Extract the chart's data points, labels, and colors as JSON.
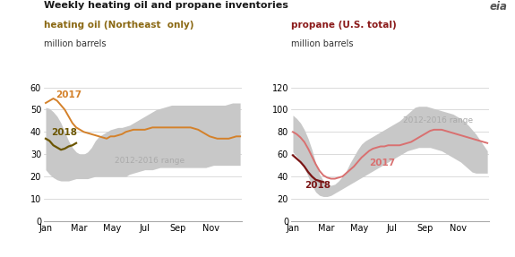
{
  "title": "Weekly heating oil and propane inventories",
  "left_subtitle": "heating oil (Northeast  only)",
  "left_ylabel": "million barrels",
  "right_subtitle": "propane (U.S. total)",
  "right_ylabel": "million barrels",
  "left_ylim": [
    0,
    60
  ],
  "left_yticks": [
    0,
    10,
    20,
    30,
    40,
    50,
    60
  ],
  "right_ylim": [
    0,
    120
  ],
  "right_yticks": [
    0,
    20,
    40,
    60,
    80,
    100,
    120
  ],
  "x_labels": [
    "Jan",
    "Mar",
    "May",
    "Jul",
    "Sep",
    "Nov"
  ],
  "title_color": "#1a1a1a",
  "left_subtitle_color": "#8b6914",
  "right_subtitle_color": "#8b1a1a",
  "range_color": "#c8c8c8",
  "range_label": "2012-2016 range",
  "color_2017_left": "#d4812a",
  "color_2018_left": "#6b5500",
  "color_2017_right": "#d97070",
  "color_2018_right": "#7a1515",
  "left_range_upper": [
    51,
    50.5,
    49,
    47,
    44,
    40,
    36,
    33,
    31,
    30,
    30,
    31,
    33,
    36,
    38,
    39,
    40,
    41,
    41.5,
    42,
    42,
    42.5,
    43,
    44,
    45,
    46,
    47,
    48,
    49,
    50,
    50.5,
    51,
    51.5,
    52,
    52,
    52,
    52,
    52,
    52,
    52,
    52,
    52,
    52,
    52,
    52,
    52,
    52,
    52,
    52.5,
    53,
    53,
    53
  ],
  "left_range_lower": [
    23,
    21,
    19.5,
    18.5,
    18,
    18,
    18,
    18.5,
    19,
    19,
    19,
    19,
    19.5,
    20,
    20,
    20,
    20,
    20,
    20,
    20,
    20,
    20,
    21,
    21.5,
    22,
    22.5,
    23,
    23,
    23,
    23.5,
    24,
    24,
    24,
    24,
    24,
    24,
    24,
    24,
    24,
    24,
    24,
    24,
    24,
    24.5,
    25,
    25,
    25,
    25,
    25,
    25,
    25,
    25
  ],
  "left_2017": [
    53,
    54,
    55,
    54,
    52,
    50,
    47,
    44,
    42,
    41,
    40,
    39.5,
    39,
    38.5,
    38,
    37.5,
    37,
    38,
    38,
    38.5,
    39,
    40,
    40.5,
    41,
    41,
    41,
    41,
    41.5,
    42,
    42,
    42,
    42,
    42,
    42,
    42,
    42,
    42,
    42,
    42,
    41.5,
    41,
    40,
    39,
    38,
    37.5,
    37,
    37,
    37,
    37,
    37.5,
    38,
    38
  ],
  "left_2018": [
    37,
    36,
    34,
    33,
    32,
    32.5,
    33.5,
    34,
    35,
    null,
    null,
    null,
    null,
    null,
    null,
    null,
    null,
    null,
    null,
    null,
    null,
    null,
    null,
    null,
    null,
    null,
    null,
    null,
    null,
    null,
    null,
    null,
    null,
    null,
    null,
    null,
    null,
    null,
    null,
    null,
    null,
    null,
    null,
    null,
    null,
    null,
    null,
    null,
    null,
    null,
    null,
    null
  ],
  "right_range_upper": [
    95,
    92,
    88,
    82,
    74,
    64,
    52,
    42,
    36,
    33,
    32,
    33,
    36,
    40,
    45,
    52,
    58,
    64,
    69,
    72,
    74,
    76,
    78,
    80,
    82,
    84,
    86,
    88,
    90,
    93,
    96,
    99,
    102,
    103,
    103,
    103,
    102,
    101,
    100,
    99,
    98,
    97,
    96,
    94,
    92,
    89,
    86,
    82,
    78,
    73,
    68,
    63
  ],
  "right_range_lower": [
    62,
    58,
    54,
    48,
    40,
    32,
    26,
    23,
    22,
    22,
    23,
    25,
    27,
    29,
    31,
    33,
    35,
    37,
    39,
    41,
    43,
    45,
    47,
    49,
    51,
    53,
    55,
    57,
    59,
    61,
    63,
    64,
    65,
    66,
    66,
    66,
    66,
    65,
    64,
    63,
    61,
    59,
    57,
    55,
    53,
    50,
    47,
    44,
    43,
    43,
    43,
    43
  ],
  "right_2017": [
    80,
    78,
    75,
    71,
    65,
    58,
    51,
    45,
    41,
    39,
    38,
    38,
    39,
    40,
    43,
    46,
    49,
    53,
    57,
    60,
    63,
    65,
    66,
    67,
    67,
    68,
    68,
    68,
    68,
    69,
    70,
    71,
    73,
    75,
    77,
    79,
    81,
    82,
    82,
    82,
    81,
    80,
    79,
    78,
    77,
    76,
    75,
    74,
    73,
    72,
    71,
    70
  ],
  "right_2018": [
    59,
    56,
    53,
    49,
    44,
    40,
    37,
    36,
    35,
    null,
    null,
    null,
    null,
    null,
    null,
    null,
    null,
    null,
    null,
    null,
    null,
    null,
    null,
    null,
    null,
    null,
    null,
    null,
    null,
    null,
    null,
    null,
    null,
    null,
    null,
    null,
    null,
    null,
    null,
    null,
    null,
    null,
    null,
    null,
    null,
    null,
    null,
    null,
    null,
    null,
    null,
    null
  ]
}
